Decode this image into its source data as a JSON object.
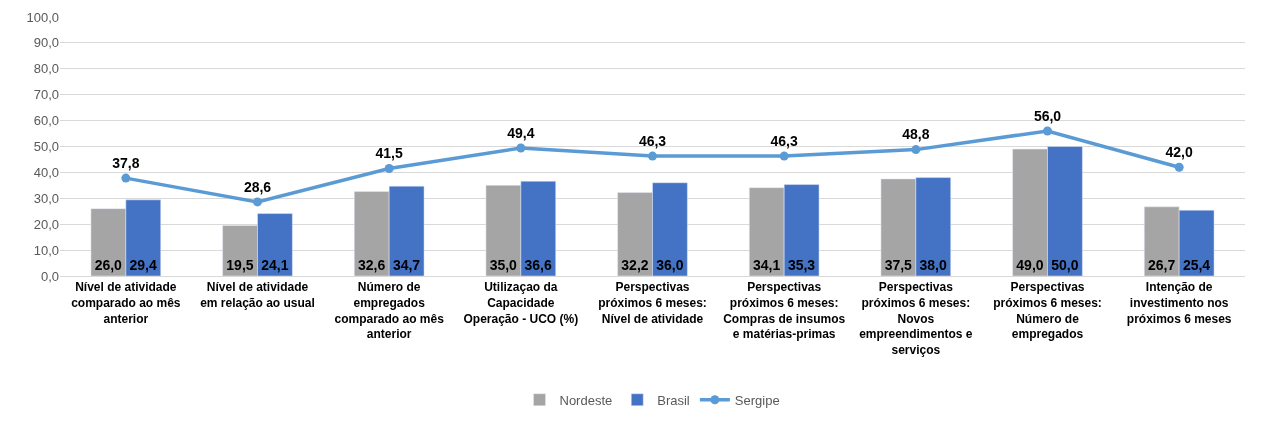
{
  "chart_data": {
    "type": "bar",
    "categories": [
      "Nível de atividade\ncomparado ao mês\nanterior",
      "Nível de atividade\nem relação ao usual",
      "Número de\nempregados\ncomparado ao mês\nanterior",
      "Utilizaçao da\nCapacidade\nOperação - UCO (%)",
      "Perspectivas\npróximos 6 meses:\nNível de atividade",
      "Perspectivas\npróximos 6 meses:\nCompras de insumos\ne matérias-primas",
      "Perspectivas\npróximos 6 meses:\nNovos\nempreendimentos e\nserviços",
      "Perspectivas\npróximos 6 meses:\nNúmero de\nempregados",
      "Intenção de\ninvestimento nos\npróximos 6 meses"
    ],
    "series": [
      {
        "name": "Nordeste",
        "color": "#a5a5a5",
        "values": [
          26.0,
          19.5,
          32.6,
          35.0,
          32.2,
          34.1,
          37.5,
          49.0,
          26.7
        ],
        "value_labels": [
          "26,0",
          "19,5",
          "32,6",
          "35,0",
          "32,2",
          "34,1",
          "37,5",
          "49,0",
          "26,7"
        ]
      },
      {
        "name": "Brasil",
        "color": "#4472c4",
        "values": [
          29.4,
          24.1,
          34.7,
          36.6,
          36.0,
          35.3,
          38.0,
          50.0,
          25.4
        ],
        "value_labels": [
          "29,4",
          "24,1",
          "34,7",
          "36,6",
          "36,0",
          "35,3",
          "38,0",
          "50,0",
          "25,4"
        ]
      },
      {
        "name": "Sergipe",
        "type": "line",
        "color": "#5b9bd5",
        "marker": "circle",
        "values": [
          37.8,
          28.6,
          41.5,
          49.4,
          46.3,
          46.3,
          48.8,
          56.0,
          42.0
        ],
        "value_labels": [
          "37,8",
          "28,6",
          "41,5",
          "49,4",
          "46,3",
          "46,3",
          "48,8",
          "56,0",
          "42,0"
        ]
      }
    ],
    "ylim": [
      0,
      100
    ],
    "yticks": [
      {
        "value": 0,
        "label": "0,0"
      },
      {
        "value": 10,
        "label": "10,0"
      },
      {
        "value": 20,
        "label": "20,0"
      },
      {
        "value": 30,
        "label": "30,0"
      },
      {
        "value": 40,
        "label": "40,0"
      },
      {
        "value": 50,
        "label": "50,0"
      },
      {
        "value": 60,
        "label": "60,0"
      },
      {
        "value": 70,
        "label": "70,0"
      },
      {
        "value": 80,
        "label": "80,0"
      },
      {
        "value": 90,
        "label": "90,0"
      },
      {
        "value": 100,
        "label": "100,0"
      }
    ],
    "grid": "y",
    "legend": "bottom"
  }
}
